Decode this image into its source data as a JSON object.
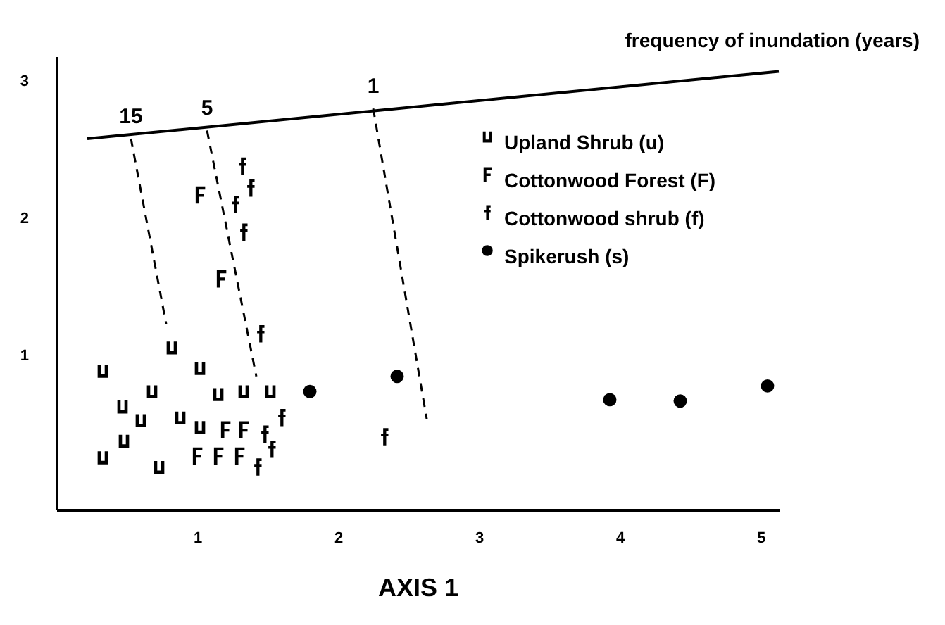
{
  "chart_data": {
    "type": "scatter",
    "xlabel": "AXIS 1",
    "xlim": [
      0,
      5.13
    ],
    "ylim": [
      -0.12,
      3.18
    ],
    "xticks": [
      1,
      2,
      3,
      4,
      5
    ],
    "yticks": [
      1,
      2,
      3
    ],
    "grid": false,
    "legend": "top right",
    "annotations": [
      {
        "text": "15",
        "x": 0.53,
        "y": 2.58
      },
      {
        "text": "5",
        "x": 1.07,
        "y": 2.64
      },
      {
        "text": "1",
        "x": 2.25,
        "y": 2.8
      }
    ],
    "series": [
      {
        "name": "frequency of inundation (years)",
        "type": "line",
        "line_style": "solid",
        "color": "#000000",
        "x": [
          0.22,
          5.13
        ],
        "values": [
          2.58,
          3.07
        ]
      },
      {
        "type": "line",
        "line_style": "dashed",
        "color": "#000000",
        "x": [
          0.53,
          0.78
        ],
        "values": [
          2.58,
          1.23
        ]
      },
      {
        "type": "line",
        "line_style": "dashed",
        "color": "#000000",
        "x": [
          1.07,
          1.42
        ],
        "values": [
          2.64,
          0.85
        ]
      },
      {
        "type": "line",
        "line_style": "dashed",
        "color": "#000000",
        "x": [
          2.25,
          2.63
        ],
        "values": [
          2.8,
          0.54
        ]
      },
      {
        "name": "Upland Shrub (u)",
        "color": "#000000",
        "x": [
          0.33,
          0.82,
          1.02,
          0.68,
          0.47,
          1.15,
          1.33,
          1.52,
          0.6,
          0.88,
          1.02,
          0.48,
          0.33,
          0.73
        ],
        "values": [
          0.89,
          1.06,
          0.91,
          0.74,
          0.63,
          0.72,
          0.74,
          0.74,
          0.53,
          0.55,
          0.48,
          0.38,
          0.26,
          0.19
        ]
      },
      {
        "name": "Cottonwood Forest (F)",
        "color": "#000000",
        "x": [
          1.02,
          1.17,
          1.2,
          1.33,
          1.0,
          1.15,
          1.3
        ],
        "values": [
          2.17,
          1.56,
          0.46,
          0.46,
          0.27,
          0.27,
          0.27
        ]
      },
      {
        "name": "Cottonwood shrub (f)",
        "color": "#000000",
        "x": [
          1.32,
          1.38,
          1.27,
          1.33,
          1.45,
          1.6,
          1.48,
          1.53,
          1.43,
          2.33
        ],
        "values": [
          2.38,
          2.22,
          2.1,
          1.9,
          1.16,
          0.55,
          0.43,
          0.32,
          0.19,
          0.41
        ]
      },
      {
        "name": "Spikerush (s)",
        "color": "#000000",
        "x": [
          1.8,
          2.42,
          3.93,
          4.43,
          5.05
        ],
        "values": [
          0.74,
          0.85,
          0.68,
          0.67,
          0.78
        ]
      }
    ]
  }
}
